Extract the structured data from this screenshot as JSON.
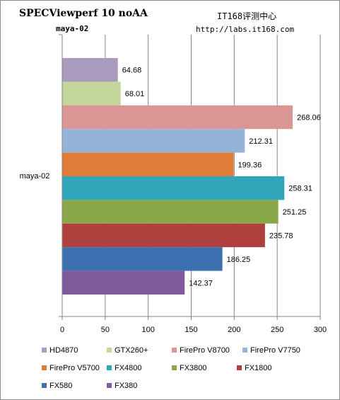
{
  "header": {
    "title": "SPECViewperf 10 noAA",
    "subtitle": "maya-02",
    "site_name": "IT168评测中心",
    "site_url": "http://labs.it168.com"
  },
  "chart_data": {
    "type": "bar",
    "orientation": "horizontal",
    "categories": [
      "maya-02"
    ],
    "series": [
      {
        "name": "HD4870",
        "values": [
          64.68
        ],
        "color": "#a99bbd"
      },
      {
        "name": "GTX260+",
        "values": [
          68.01
        ],
        "color": "#c3d69b"
      },
      {
        "name": "FirePro V8700",
        "values": [
          268.06
        ],
        "color": "#d99694"
      },
      {
        "name": "FirePro V7750",
        "values": [
          212.31
        ],
        "color": "#95b3d7"
      },
      {
        "name": "FirePro V5700",
        "values": [
          199.36
        ],
        "color": "#e07b39"
      },
      {
        "name": "FX4800",
        "values": [
          258.31
        ],
        "color": "#31a5b9"
      },
      {
        "name": "FX3800",
        "values": [
          251.25
        ],
        "color": "#8aa84a"
      },
      {
        "name": "FX1800",
        "values": [
          235.78
        ],
        "color": "#b0403d"
      },
      {
        "name": "FX580",
        "values": [
          186.25
        ],
        "color": "#3d70b0"
      },
      {
        "name": "FX380",
        "values": [
          142.37
        ],
        "color": "#7f5a9d"
      }
    ],
    "x_ticks": [
      "0",
      "50",
      "100",
      "150",
      "200",
      "250",
      "300"
    ],
    "xlim": [
      0,
      300
    ],
    "xlabel": "",
    "ylabel": "",
    "grid": true,
    "legend_position": "bottom"
  }
}
